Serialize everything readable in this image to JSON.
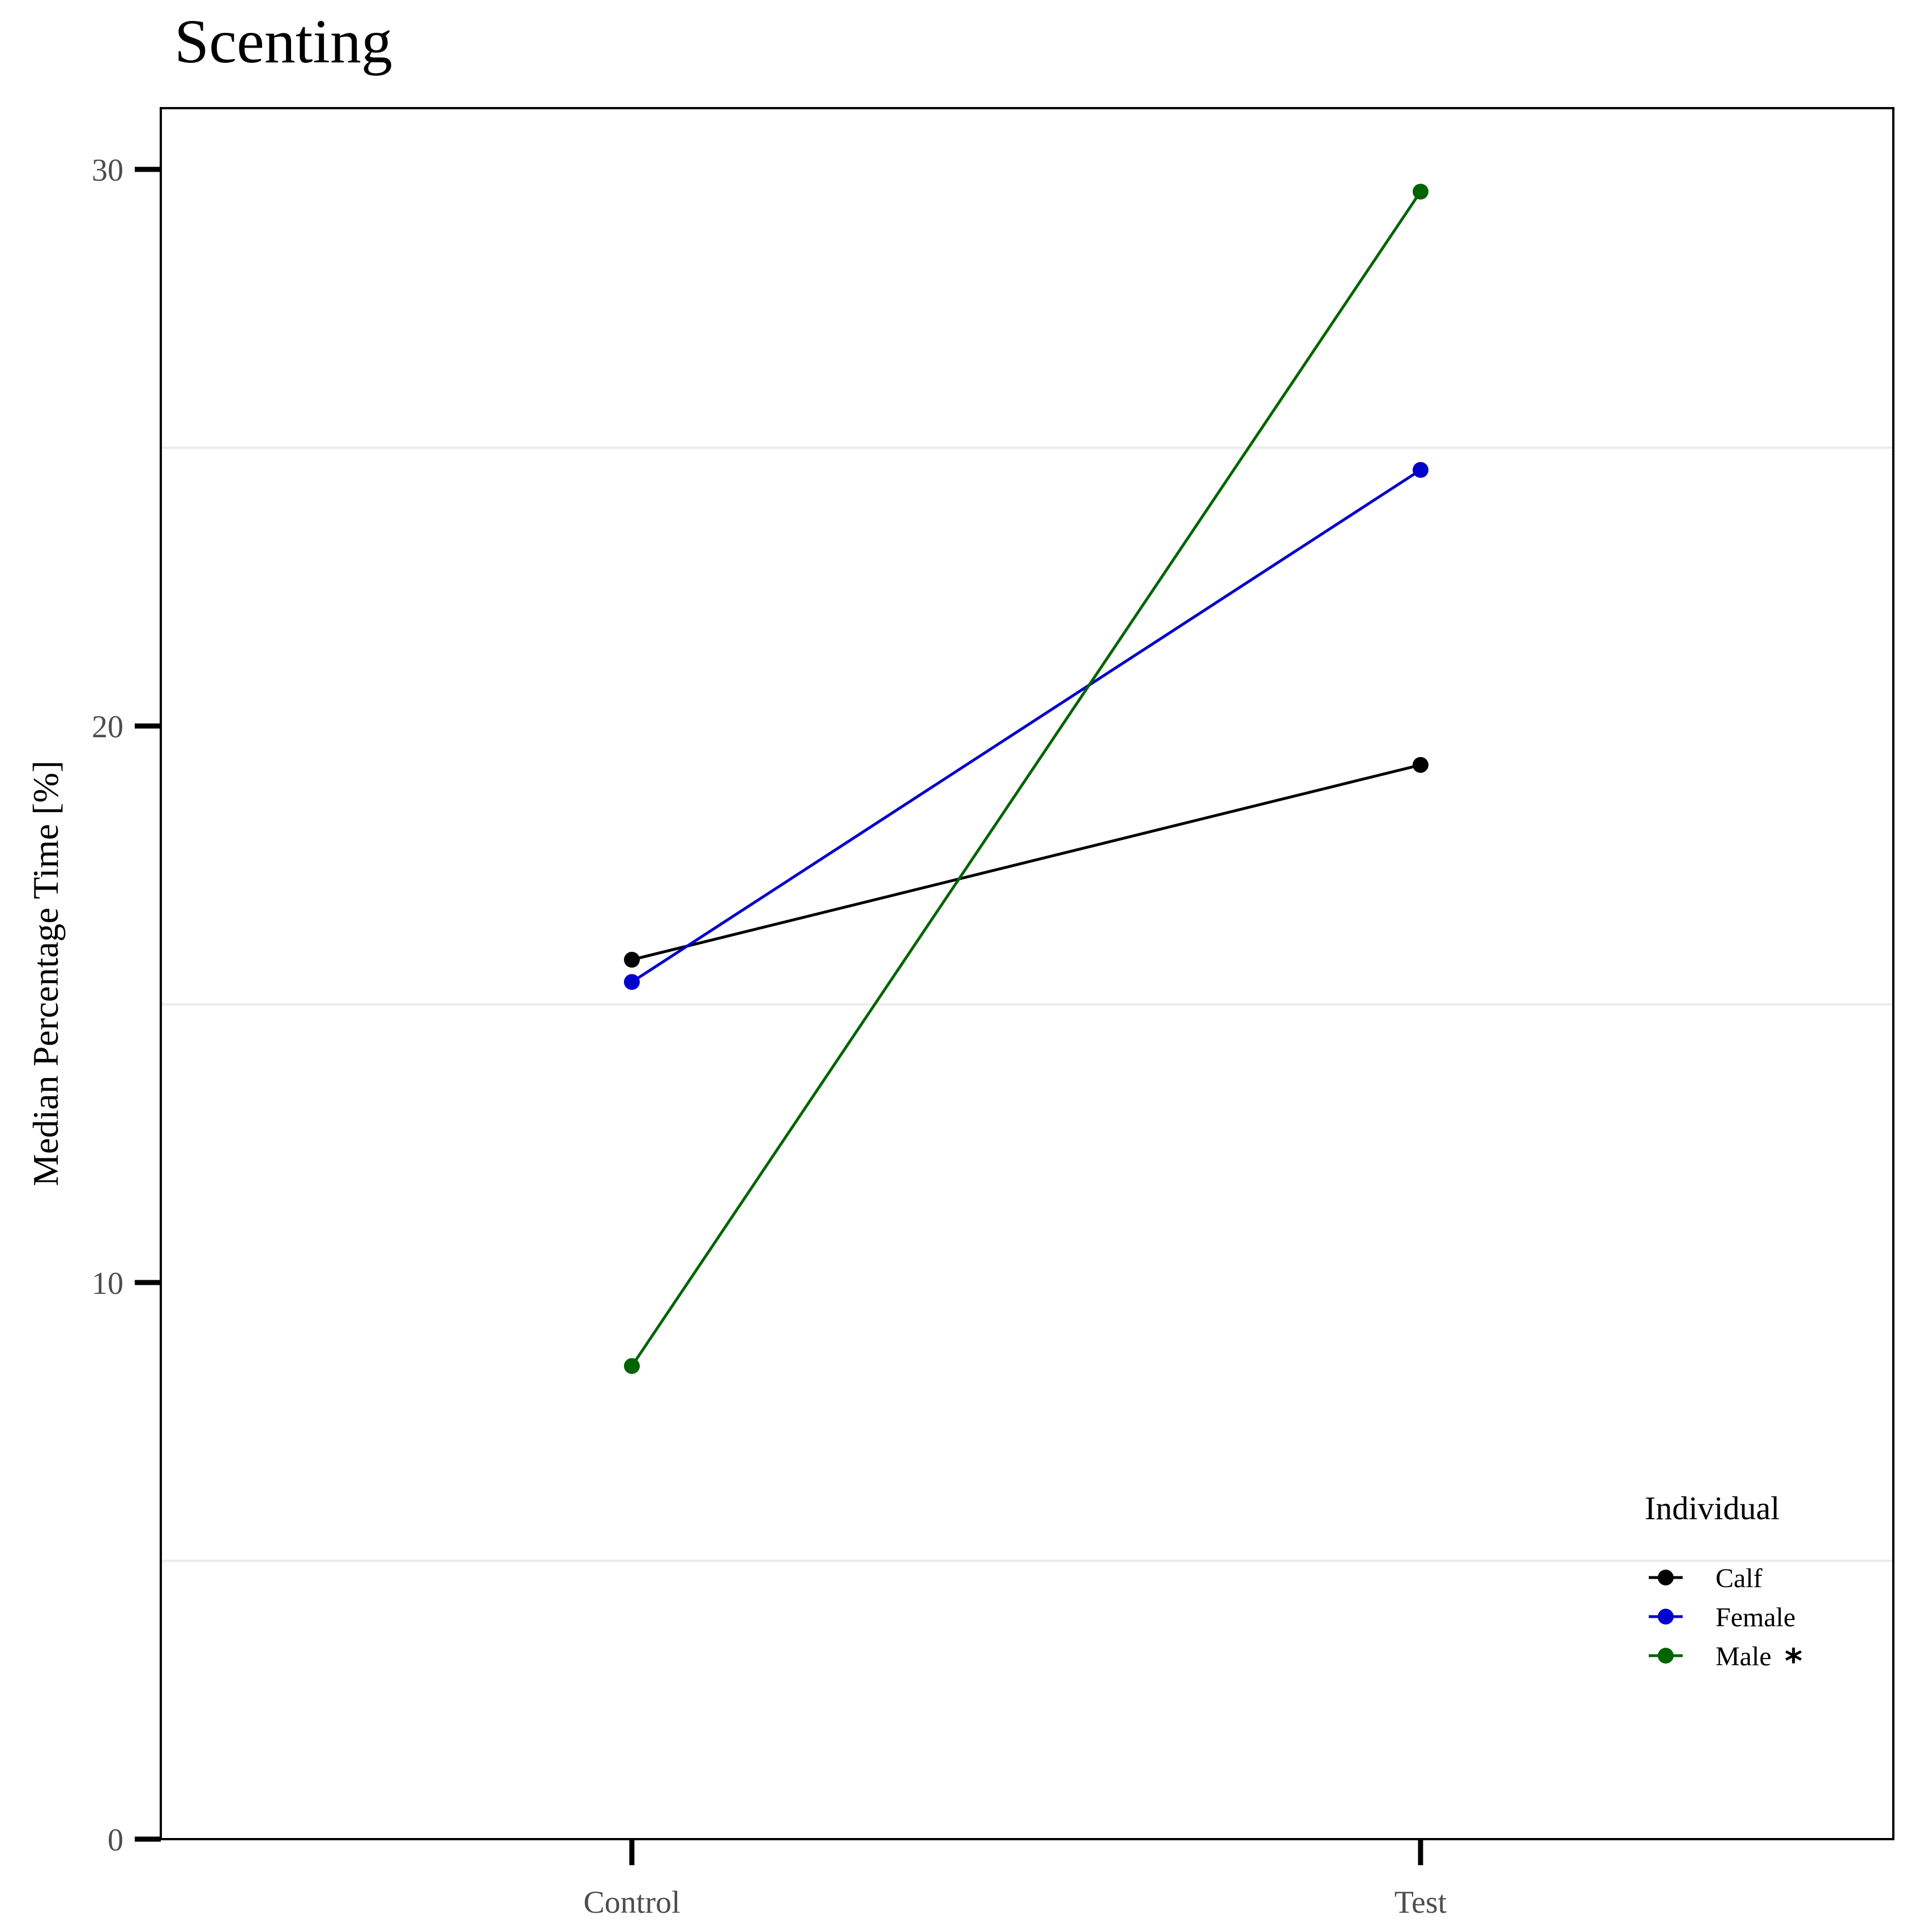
{
  "chart_data": {
    "type": "line",
    "title": "Scenting",
    "xlabel": "",
    "ylabel": "Median Percentage Time [%]",
    "categories": [
      "Control",
      "Test"
    ],
    "ylim": [
      0,
      31.1
    ],
    "yticks": [
      0,
      10,
      20,
      30
    ],
    "ytick_labels": [
      "0",
      "10",
      "20",
      "30"
    ],
    "grid": "horizontal minor lines only",
    "legend": {
      "title": "Individual",
      "placement": "bottom-right inside plot"
    },
    "series": [
      {
        "name": "Calf",
        "marker_note": "",
        "color": "#000000",
        "values": [
          15.8,
          19.3
        ]
      },
      {
        "name": "Female",
        "marker_note": "",
        "color": "#0000cc",
        "values": [
          15.4,
          24.6
        ]
      },
      {
        "name": "Male",
        "marker_note": "*",
        "color": "#006400",
        "values": [
          8.5,
          29.6
        ]
      }
    ]
  }
}
